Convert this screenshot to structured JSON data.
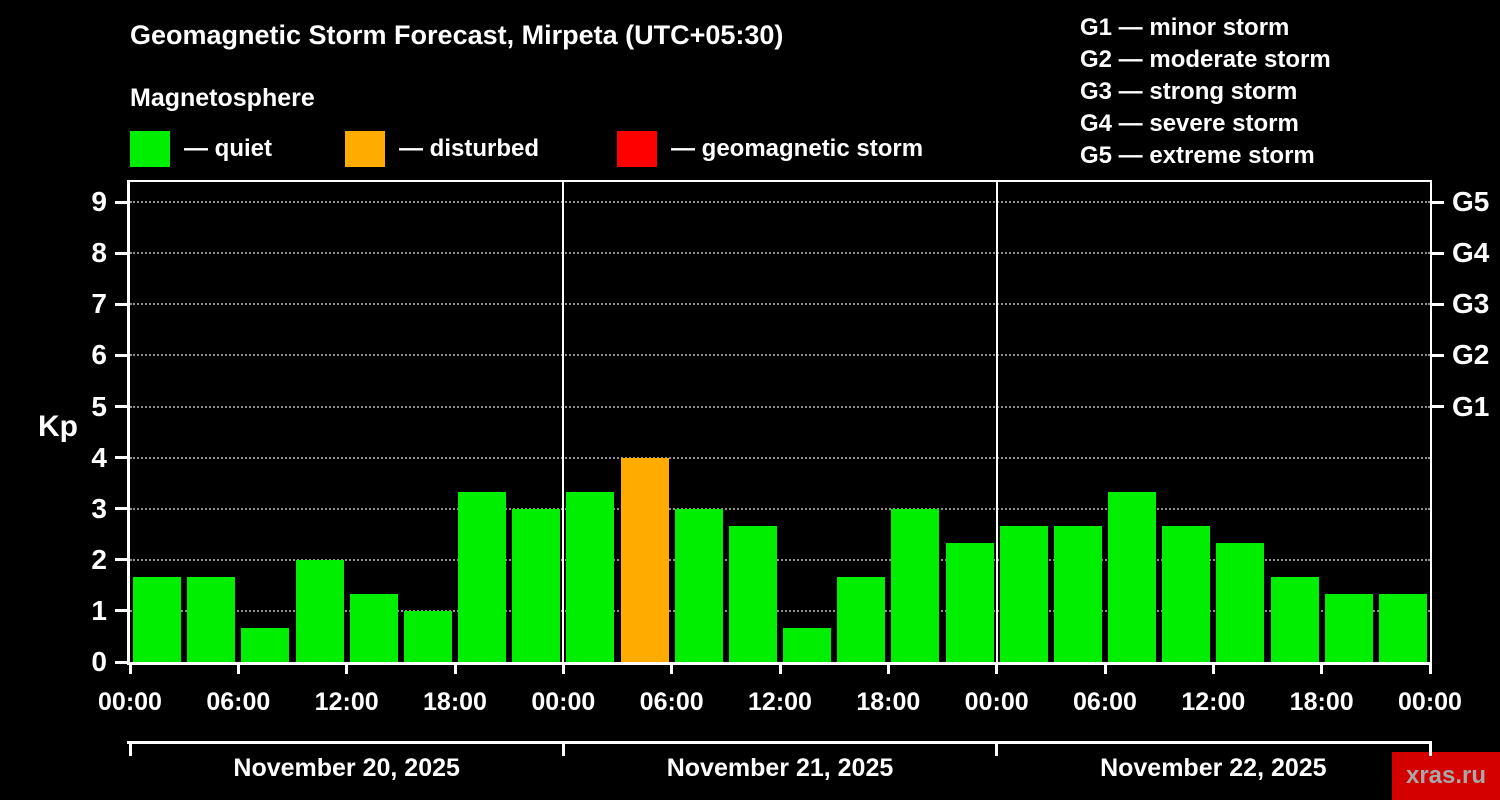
{
  "header": {
    "title": "Geomagnetic Storm Forecast, Mirpeta (UTC+05:30)",
    "subtitle": "Magnetosphere"
  },
  "legend": {
    "items": [
      {
        "label": "— quiet",
        "status": "quiet"
      },
      {
        "label": "— disturbed",
        "status": "disturbed"
      },
      {
        "label": "— geomagnetic storm",
        "status": "storm"
      }
    ]
  },
  "storm_scale": {
    "items": [
      "G1 — minor storm",
      "G2 — moderate storm",
      "G3 — strong storm",
      "G4 — severe storm",
      "G5 — extreme storm"
    ]
  },
  "chart_data": {
    "type": "bar",
    "title": "Geomagnetic Storm Forecast, Mirpeta (UTC+05:30)",
    "ylabel": "Kp",
    "ylim": [
      0,
      9.4
    ],
    "yticks": [
      0,
      1,
      2,
      3,
      4,
      5,
      6,
      7,
      8,
      9
    ],
    "right_axis": [
      {
        "label": "G1",
        "kp": 5
      },
      {
        "label": "G2",
        "kp": 6
      },
      {
        "label": "G3",
        "kp": 7
      },
      {
        "label": "G4",
        "kp": 8
      },
      {
        "label": "G5",
        "kp": 9
      }
    ],
    "grid": "dotted-horizontal",
    "total_hours": 72,
    "bar_hours": 3,
    "x_tick_step_hours": 6,
    "x_tick_label_repeat": [
      "00:00",
      "06:00",
      "12:00",
      "18:00"
    ],
    "day_separators_hours": [
      24,
      48
    ],
    "days": [
      {
        "label": "November 20, 2025",
        "start_hour": 0
      },
      {
        "label": "November 21, 2025",
        "start_hour": 24
      },
      {
        "label": "November 22, 2025",
        "start_hour": 48
      }
    ],
    "colors": {
      "quiet": "#00ee00",
      "disturbed": "#ffab00",
      "storm": "#ff0000"
    },
    "bars": [
      {
        "start_hour": 0,
        "kp": 1.67,
        "status": "quiet"
      },
      {
        "start_hour": 3,
        "kp": 1.67,
        "status": "quiet"
      },
      {
        "start_hour": 6,
        "kp": 0.67,
        "status": "quiet"
      },
      {
        "start_hour": 9,
        "kp": 2.0,
        "status": "quiet"
      },
      {
        "start_hour": 12,
        "kp": 1.33,
        "status": "quiet"
      },
      {
        "start_hour": 15,
        "kp": 1.0,
        "status": "quiet"
      },
      {
        "start_hour": 18,
        "kp": 3.33,
        "status": "quiet"
      },
      {
        "start_hour": 21,
        "kp": 3.0,
        "status": "quiet"
      },
      {
        "start_hour": 24,
        "kp": 3.33,
        "status": "quiet"
      },
      {
        "start_hour": 27,
        "kp": 4.0,
        "status": "disturbed"
      },
      {
        "start_hour": 30,
        "kp": 3.0,
        "status": "quiet"
      },
      {
        "start_hour": 33,
        "kp": 2.67,
        "status": "quiet"
      },
      {
        "start_hour": 36,
        "kp": 0.67,
        "status": "quiet"
      },
      {
        "start_hour": 39,
        "kp": 1.67,
        "status": "quiet"
      },
      {
        "start_hour": 42,
        "kp": 3.0,
        "status": "quiet"
      },
      {
        "start_hour": 45,
        "kp": 2.33,
        "status": "quiet"
      },
      {
        "start_hour": 48,
        "kp": 2.67,
        "status": "quiet"
      },
      {
        "start_hour": 51,
        "kp": 2.67,
        "status": "quiet"
      },
      {
        "start_hour": 54,
        "kp": 3.33,
        "status": "quiet"
      },
      {
        "start_hour": 57,
        "kp": 2.67,
        "status": "quiet"
      },
      {
        "start_hour": 60,
        "kp": 2.33,
        "status": "quiet"
      },
      {
        "start_hour": 63,
        "kp": 1.67,
        "status": "quiet"
      },
      {
        "start_hour": 66,
        "kp": 1.33,
        "status": "quiet"
      },
      {
        "start_hour": 69,
        "kp": 1.33,
        "status": "quiet"
      }
    ]
  },
  "watermark": {
    "text": "xras.ru",
    "background": "#d40000",
    "color": "#a8a8a8"
  }
}
